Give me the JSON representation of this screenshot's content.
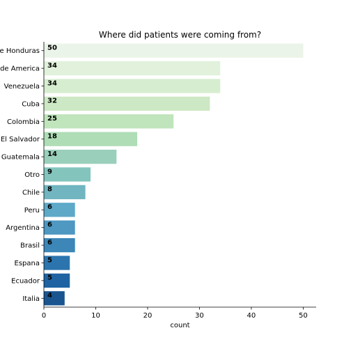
{
  "chart_data": {
    "type": "bar",
    "orientation": "horizontal",
    "title": "Where did patients were coming from?",
    "xlabel": "count",
    "ylabel": "",
    "xlim": [
      0,
      52.5
    ],
    "xticks": [
      0,
      10,
      20,
      30,
      40,
      50
    ],
    "grid": false,
    "legend": "none",
    "categories": [
      "e Honduras",
      "de America",
      "Venezuela",
      "Cuba",
      "Colombia",
      "El Salvador",
      "Guatemala",
      "Otro",
      "Chile",
      "Peru",
      "Argentina",
      "Brasil",
      "Espana",
      "Ecuador",
      "Italia"
    ],
    "values": [
      50,
      34,
      34,
      32,
      25,
      18,
      14,
      9,
      8,
      6,
      6,
      6,
      5,
      5,
      4
    ],
    "colors": [
      "#ebf4e8",
      "#e1f1db",
      "#d7edd0",
      "#cde8c4",
      "#c0e4bb",
      "#afddb6",
      "#99cfbb",
      "#83c5bd",
      "#71b5c0",
      "#5ea8c8",
      "#4e98c2",
      "#3c86b8",
      "#2c74ad",
      "#1f63a2",
      "#1a5590"
    ]
  }
}
